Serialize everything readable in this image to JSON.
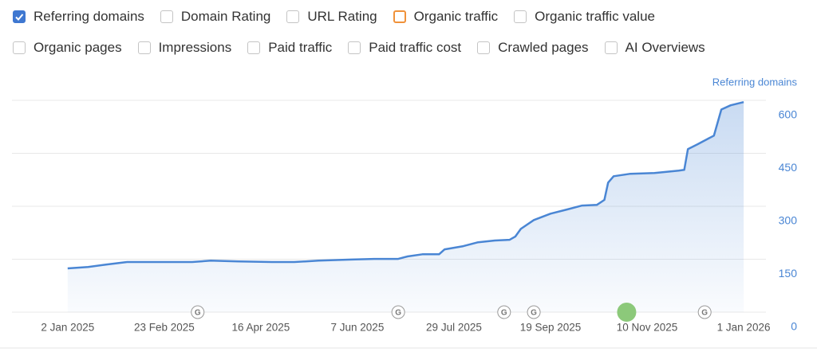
{
  "metrics": [
    {
      "label": "Referring domains",
      "checked": true,
      "color": "#3f78d1"
    },
    {
      "label": "Domain Rating",
      "checked": false,
      "color": "#c4c4c4"
    },
    {
      "label": "URL Rating",
      "checked": false,
      "color": "#c4c4c4"
    },
    {
      "label": "Organic traffic",
      "checked": false,
      "color": "#f0923a"
    },
    {
      "label": "Organic traffic value",
      "checked": false,
      "color": "#c4c4c4"
    },
    {
      "label": "Organic pages",
      "checked": false,
      "color": "#c4c4c4"
    },
    {
      "label": "Impressions",
      "checked": false,
      "color": "#c4c4c4"
    },
    {
      "label": "Paid traffic",
      "checked": false,
      "color": "#c4c4c4"
    },
    {
      "label": "Paid traffic cost",
      "checked": false,
      "color": "#c4c4c4"
    },
    {
      "label": "Crawled pages",
      "checked": false,
      "color": "#c4c4c4"
    },
    {
      "label": "AI Overviews",
      "checked": false,
      "color": "#c4c4c4"
    }
  ],
  "chart_data": {
    "type": "area",
    "series": [
      {
        "name": "Referring domains",
        "color": "#4a86d4",
        "x": [
          "2025-01-02",
          "2025-01-13",
          "2025-01-23",
          "2025-02-03",
          "2025-02-20",
          "2025-03-10",
          "2025-03-20",
          "2025-04-04",
          "2025-04-22",
          "2025-05-04",
          "2025-05-17",
          "2025-06-04",
          "2025-06-16",
          "2025-06-29",
          "2025-07-04",
          "2025-07-12",
          "2025-07-21",
          "2025-07-24",
          "2025-08-03",
          "2025-08-11",
          "2025-08-20",
          "2025-08-28",
          "2025-08-31",
          "2025-09-03",
          "2025-09-10",
          "2025-09-19",
          "2025-09-28",
          "2025-10-06",
          "2025-10-14",
          "2025-10-18",
          "2025-10-20",
          "2025-10-23",
          "2025-11-01",
          "2025-11-14",
          "2025-11-27",
          "2025-11-30",
          "2025-12-02",
          "2025-12-07",
          "2025-12-16",
          "2025-12-20",
          "2025-12-25",
          "2026-01-01"
        ],
        "values": [
          124,
          128,
          135,
          142,
          142,
          142,
          146,
          144,
          142,
          142,
          146,
          149,
          151,
          151,
          158,
          164,
          164,
          178,
          187,
          198,
          203,
          205,
          214,
          236,
          261,
          279,
          291,
          302,
          304,
          318,
          367,
          385,
          392,
          394,
          401,
          403,
          462,
          475,
          500,
          574,
          586,
          595
        ]
      }
    ],
    "xlim": [
      "2024-12-03",
      "2026-01-13"
    ],
    "xticks": [
      {
        "value": "2025-01-02",
        "label": "2 Jan 2025"
      },
      {
        "value": "2025-02-23",
        "label": "23 Feb 2025"
      },
      {
        "value": "2025-04-16",
        "label": "16 Apr 2025"
      },
      {
        "value": "2025-06-07",
        "label": "7 Jun 2025"
      },
      {
        "value": "2025-07-29",
        "label": "29 Jul 2025"
      },
      {
        "value": "2025-09-19",
        "label": "19 Sep 2025"
      },
      {
        "value": "2025-11-10",
        "label": "10 Nov 2025"
      },
      {
        "value": "2026-01-01",
        "label": "1 Jan 2026"
      }
    ],
    "ylim": [
      0,
      600
    ],
    "yticks": [
      0,
      150,
      300,
      450,
      600
    ],
    "grid": true,
    "events": [
      {
        "x": "2025-03-13",
        "label": "G"
      },
      {
        "x": "2025-06-29",
        "label": "G"
      },
      {
        "x": "2025-08-25",
        "label": "G"
      },
      {
        "x": "2025-09-10",
        "label": "G"
      },
      {
        "x": "2025-12-11",
        "label": "G"
      },
      {
        "x": "2025-10-30",
        "color": "#8cc97a"
      }
    ]
  }
}
